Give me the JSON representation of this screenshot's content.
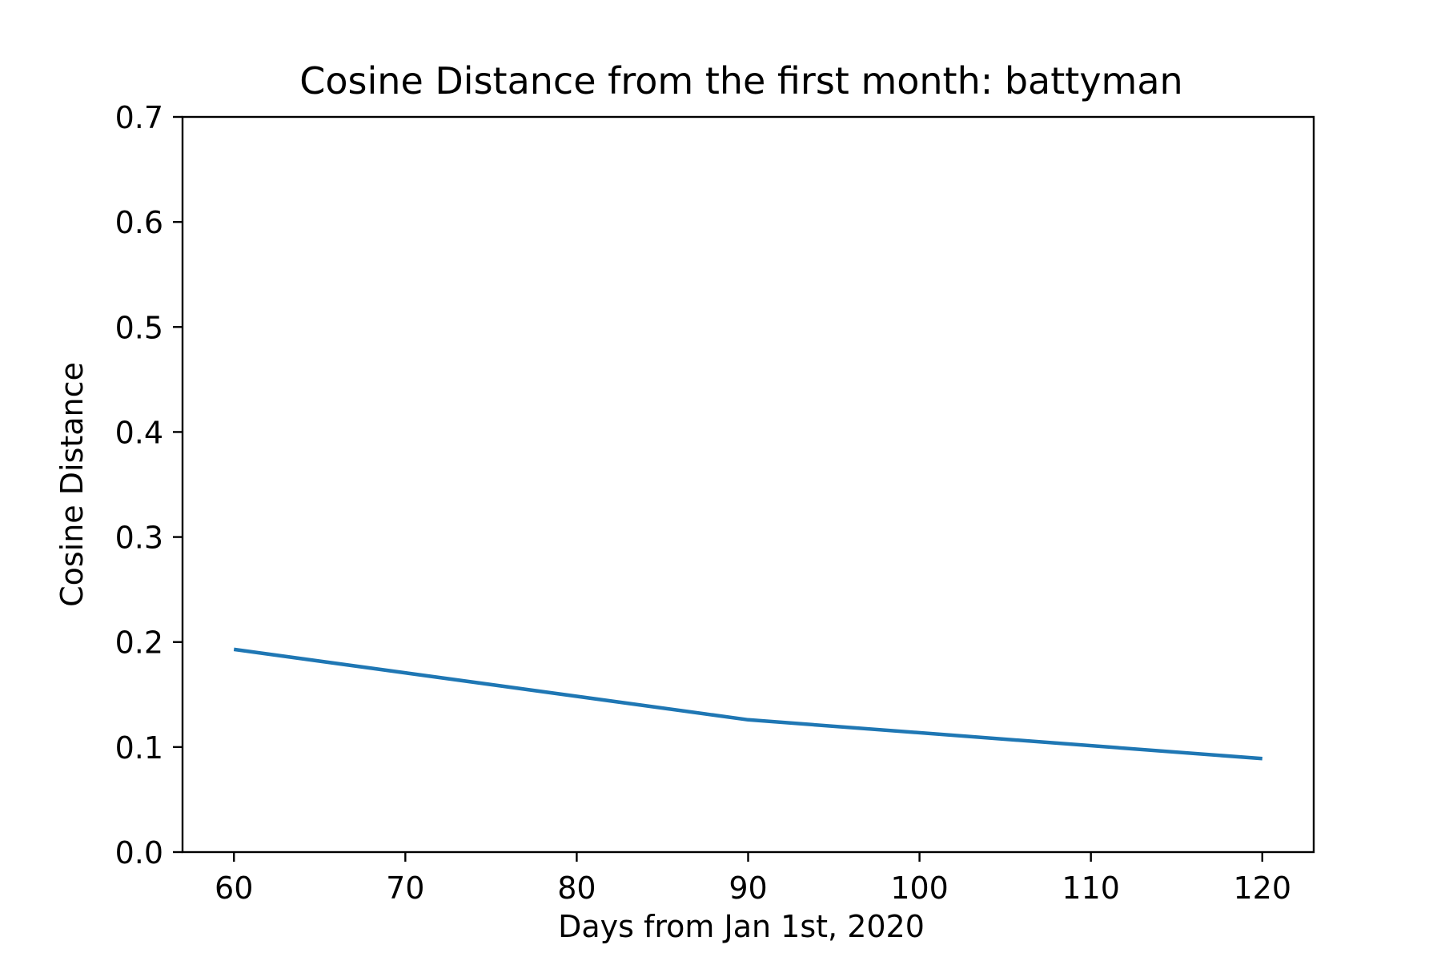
{
  "chart_data": {
    "type": "line",
    "title": "Cosine Distance from the first month: battyman",
    "xlabel": "Days from Jan 1st, 2020",
    "ylabel": "Cosine Distance",
    "xlim": [
      57,
      123
    ],
    "ylim": [
      0.0,
      0.7
    ],
    "x_ticks": [
      60,
      70,
      80,
      90,
      100,
      110,
      120
    ],
    "x_tick_labels": [
      "60",
      "70",
      "80",
      "90",
      "100",
      "110",
      "120"
    ],
    "y_ticks": [
      0.0,
      0.1,
      0.2,
      0.3,
      0.4,
      0.5,
      0.6,
      0.7
    ],
    "y_tick_labels": [
      "0.0",
      "0.1",
      "0.2",
      "0.3",
      "0.4",
      "0.5",
      "0.6",
      "0.7"
    ],
    "grid": false,
    "series": [
      {
        "x": [
          60,
          90,
          120
        ],
        "y": [
          0.193,
          0.126,
          0.089
        ],
        "color": "#1f77b4"
      }
    ]
  }
}
